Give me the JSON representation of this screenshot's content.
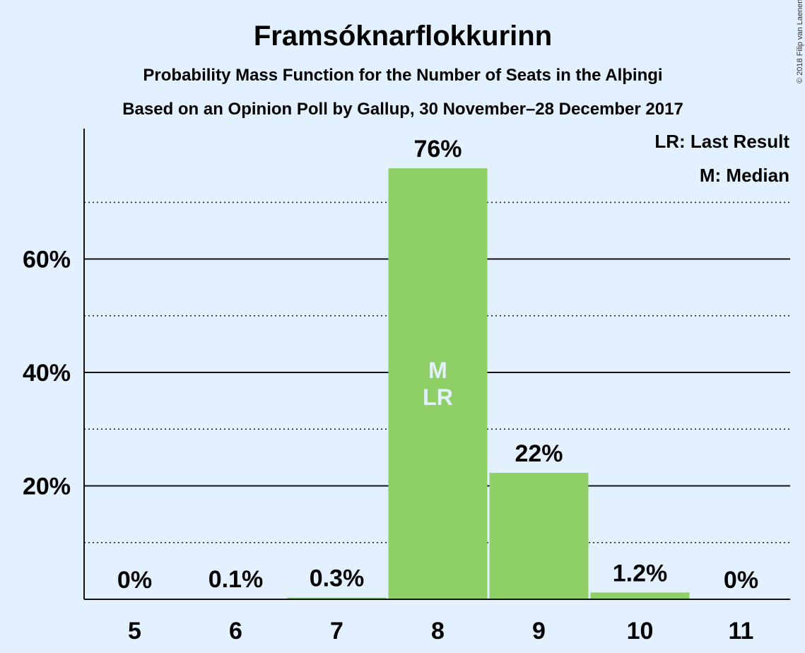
{
  "colors": {
    "background": "#e3f1ff",
    "bar": "#8ed066",
    "axis": "#111111",
    "bar_text": "#e3f1ff"
  },
  "chart_data": {
    "type": "bar",
    "title": "Framsóknarflokkurinn",
    "subtitle": "Probability Mass Function for the Number of Seats in the Alþingi",
    "subtitle2": "Based on an Opinion Poll by Gallup, 30 November–28 December 2017",
    "copyright": "© 2018 Filip van Laenen",
    "categories": [
      "5",
      "6",
      "7",
      "8",
      "9",
      "10",
      "11"
    ],
    "values": [
      0,
      0.1,
      0.3,
      76,
      22.3,
      1.2,
      0
    ],
    "data_labels": [
      "0%",
      "0.1%",
      "0.3%",
      "76%",
      "22%",
      "1.2%",
      "0%"
    ],
    "yticks": [
      {
        "value": 20,
        "label": "20%"
      },
      {
        "value": 40,
        "label": "40%"
      },
      {
        "value": 60,
        "label": "60%"
      }
    ],
    "minor_grid": [
      10,
      30,
      50,
      70
    ],
    "ylim": [
      0,
      83
    ],
    "grid": true,
    "legend_position": "top-right",
    "legend": [
      "LR: Last Result",
      "M: Median"
    ],
    "median_category": "8",
    "median_marker": "M",
    "last_result_category": "8",
    "last_result_marker": "LR"
  }
}
